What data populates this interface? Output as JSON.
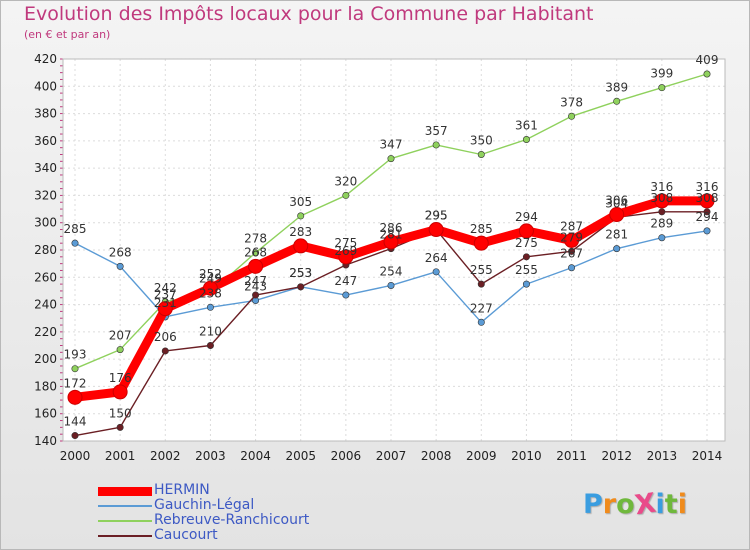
{
  "header": {
    "title": "Evolution des Impôts locaux pour la Commune par Habitant",
    "subtitle": "(en € et par an)"
  },
  "logo": {
    "text": "ProXiti",
    "letter_colors": [
      "#3a9de0",
      "#f08b1c",
      "#6fb83c",
      "#e94b8a",
      "#3a9de0",
      "#6fb83c",
      "#f08b1c"
    ]
  },
  "chart_data": {
    "type": "line",
    "title": "Evolution des Impôts locaux pour la Commune par Habitant",
    "subtitle": "(en € et par an)",
    "xlabel": "",
    "ylabel": "",
    "x": [
      "2000",
      "2001",
      "2002",
      "2003",
      "2004",
      "2005",
      "2006",
      "2007",
      "2008",
      "2009",
      "2010",
      "2011",
      "2012",
      "2013",
      "2014"
    ],
    "ylim": [
      140,
      420
    ],
    "yticks": [
      140,
      160,
      180,
      200,
      220,
      240,
      260,
      280,
      300,
      320,
      340,
      360,
      380,
      400,
      420
    ],
    "grid": true,
    "legend_position": "bottom-left",
    "series": [
      {
        "name": "HERMIN",
        "color": "#ff0000",
        "values": [
          172,
          176,
          237,
          252,
          268,
          283,
          275,
          286,
          295,
          285,
          294,
          287,
          306,
          316,
          316
        ]
      },
      {
        "name": "Gauchin-Légal",
        "color": "#5b9bd5",
        "values": [
          285,
          268,
          231,
          238,
          243,
          253,
          247,
          254,
          264,
          227,
          255,
          267,
          281,
          289,
          294
        ]
      },
      {
        "name": "Rebreuve-Ranchicourt",
        "color": "#8fd15d",
        "values": [
          193,
          207,
          242,
          249,
          278,
          305,
          320,
          347,
          357,
          350,
          361,
          378,
          389,
          399,
          409
        ]
      },
      {
        "name": "Caucourt",
        "color": "#6b1f24",
        "values": [
          144,
          150,
          206,
          210,
          247,
          253,
          269,
          281,
          295,
          255,
          275,
          279,
          304,
          308,
          308
        ]
      }
    ]
  }
}
